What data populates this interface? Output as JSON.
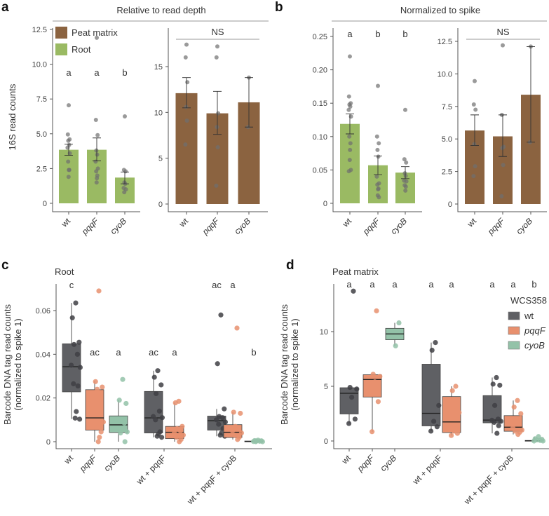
{
  "colors": {
    "root": "#9aba63",
    "peat": "#8b6340",
    "wt": "#5f6064",
    "pqqF": "#e8906e",
    "cyoB": "#93c2a8",
    "point": "#6f6f6f"
  },
  "chart_data": [
    {
      "panel": "a",
      "title": "Relative to read depth",
      "ylabel": "16S read counts",
      "legend": [
        {
          "label": "Peat matrix",
          "color": "#8b6340"
        },
        {
          "label": "Root",
          "color": "#9aba63"
        }
      ],
      "subplots": [
        {
          "type": "bar",
          "sample": "Root",
          "color": "#9aba63",
          "categories": [
            "wt",
            "pqqF",
            "cyoB"
          ],
          "ylim": [
            0,
            12.5
          ],
          "yticks": [
            "0",
            "2.5",
            "5.0",
            "7.5",
            "10.0",
            "12.5"
          ],
          "letters": [
            "a",
            "a",
            "b"
          ],
          "bars": [
            {
              "mean": 3.85,
              "err": [
                3.45,
                4.25
              ],
              "points": [
                7.05,
                4.95,
                4.6,
                4.5,
                4.2,
                4.0,
                3.6,
                3.0,
                2.4,
                2.4,
                1.9
              ]
            },
            {
              "mean": 3.85,
              "err": [
                3.05,
                4.7
              ],
              "points": [
                11.9,
                6.0,
                4.9,
                3.8,
                3.5,
                3.0,
                2.5,
                2.3,
                2.0,
                1.8,
                1.5
              ]
            },
            {
              "mean": 1.85,
              "err": [
                1.4,
                2.25
              ],
              "points": [
                6.25,
                2.4,
                2.3,
                1.5,
                1.4,
                1.1,
                1.0,
                0.8
              ]
            }
          ]
        },
        {
          "type": "bar",
          "sample": "Peat matrix",
          "color": "#8b6340",
          "categories": [
            "wt",
            "pqqF",
            "cyoB"
          ],
          "ylim": [
            0,
            18
          ],
          "yticks": [
            "0",
            "5",
            "10",
            "15"
          ],
          "significance": "NS",
          "bars": [
            {
              "mean": 12.1,
              "err": [
                10.5,
                13.8
              ],
              "points": [
                17.4,
                16.0,
                13.3,
                10.6,
                9.1,
                6.5
              ]
            },
            {
              "mean": 9.9,
              "err": [
                7.6,
                12.3
              ],
              "points": [
                17.2,
                16.0,
                9.9,
                8.4,
                6.2,
                2.0
              ]
            },
            {
              "mean": 11.1,
              "err": [
                8.4,
                13.8
              ],
              "points": [
                13.8,
                8.4
              ]
            }
          ]
        }
      ]
    },
    {
      "panel": "b",
      "title": "Normalized to spike",
      "subplots": [
        {
          "type": "bar",
          "sample": "Root",
          "color": "#9aba63",
          "categories": [
            "wt",
            "pqqF",
            "cyoB"
          ],
          "ylim": [
            0,
            0.25
          ],
          "yticks": [
            "0",
            "0.05",
            "0.10",
            "0.15",
            "0.20",
            "0.25"
          ],
          "letters": [
            "a",
            "b",
            "b"
          ],
          "bars": [
            {
              "mean": 0.119,
              "err": [
                0.104,
                0.134
              ],
              "points": [
                0.22,
                0.16,
                0.15,
                0.148,
                0.145,
                0.14,
                0.13,
                0.1,
                0.09,
                0.08,
                0.065,
                0.05,
                0.048
              ]
            },
            {
              "mean": 0.057,
              "err": [
                0.043,
                0.071
              ],
              "points": [
                0.176,
                0.1,
                0.09,
                0.08,
                0.07,
                0.04,
                0.03,
                0.028,
                0.022,
                0.021,
                0.012,
                0.009
              ]
            },
            {
              "mean": 0.046,
              "err": [
                0.037,
                0.055
              ],
              "points": [
                0.14,
                0.066,
                0.061,
                0.045,
                0.041,
                0.034,
                0.033,
                0.027,
                0.025,
                0.019
              ]
            }
          ]
        },
        {
          "type": "bar",
          "sample": "Peat matrix",
          "color": "#8b6340",
          "categories": [
            "wt",
            "pqqF",
            "cyoB"
          ],
          "ylim": [
            0,
            12.5
          ],
          "yticks": [
            "0",
            "2.5",
            "5.0",
            "7.5",
            "10.0",
            "12.5"
          ],
          "significance": "NS",
          "bars": [
            {
              "mean": 5.65,
              "err": [
                4.5,
                6.85
              ],
              "points": [
                9.45,
                7.65,
                7.25,
                4.6,
                2.9,
                2.15
              ]
            },
            {
              "mean": 5.2,
              "err": [
                3.65,
                6.85
              ],
              "points": [
                12.2,
                6.85,
                4.4,
                4.3,
                3.0,
                0.6
              ]
            },
            {
              "mean": 8.4,
              "err": [
                4.75,
                12.1
              ],
              "points": [
                12.1,
                4.75
              ]
            }
          ]
        }
      ]
    },
    {
      "panel": "c",
      "type": "box",
      "title": "Root",
      "ylabel": [
        "Barcode DNA tag read counts",
        "(normalized to spike 1)"
      ],
      "ylim": [
        0,
        0.07
      ],
      "yticks": [
        "0",
        "0.02",
        "0.04",
        "0.06"
      ],
      "xticks": [
        "wt",
        "pqqF",
        "cyoB",
        "wt + pqqF",
        "wt + pqqF + cyoB"
      ],
      "boxes": [
        {
          "group": "wt",
          "strain": "wt",
          "letter": "c",
          "q1": 0.0228,
          "median": 0.0343,
          "q3": 0.0448,
          "whisker": [
            0.0104,
            0.0635
          ],
          "points": [
            0.0635,
            0.0567,
            0.0455,
            0.0445,
            0.04,
            0.035,
            0.034,
            0.0265,
            0.0255,
            0.0138,
            0.0108,
            0.0103
          ]
        },
        {
          "group": "pqqF",
          "strain": "pqqF",
          "letter": "ac",
          "q1": 0.0053,
          "median": 0.0109,
          "q3": 0.0238,
          "whisker": [
            0,
            0.0278
          ],
          "points": [
            0.069,
            0.0275,
            0.025,
            0.024,
            0.0145,
            0.013,
            0.009,
            0.008,
            0.0045,
            0.002,
            0
          ]
        },
        {
          "group": "cyoB",
          "strain": "cyoB",
          "letter": "a",
          "q1": 0.0042,
          "median": 0.0077,
          "q3": 0.0118,
          "whisker": [
            0,
            0.019
          ],
          "points": [
            0.0285,
            0.019,
            0.0175,
            0.0095,
            0.0085,
            0.006,
            0.0045,
            0.004,
            0
          ]
        },
        {
          "group": "wt + pqqF",
          "strain": "wt",
          "letter": "ac",
          "q1": 0.004,
          "median": 0.0109,
          "q3": 0.023,
          "whisker": [
            0.002,
            0.0325
          ],
          "points": [
            0.0325,
            0.0295,
            0.026,
            0.022,
            0.014,
            0.0115,
            0.011,
            0.01,
            0.0045,
            0.0035,
            0.0025,
            0.002
          ]
        },
        {
          "group": "wt + pqqF",
          "strain": "pqqF",
          "letter": "a",
          "q1": 0.0014,
          "median": 0.0043,
          "q3": 0.007,
          "whisker": [
            0,
            0.018
          ],
          "points": [
            0.0185,
            0.0178,
            0.007,
            0.006,
            0.005,
            0.004,
            0.003,
            0.002,
            0.001,
            0
          ]
        },
        {
          "group": "wt + pqqF + cyoB",
          "strain": "wt",
          "letter": "ac",
          "q1": 0.0053,
          "median": 0.0096,
          "q3": 0.0117,
          "whisker": [
            0.0025,
            0.015
          ],
          "points": [
            0.058,
            0.0357,
            0.015,
            0.0115,
            0.011,
            0.01,
            0.009,
            0.008,
            0.006,
            0.004,
            0.003,
            0.0025
          ]
        },
        {
          "group": "wt + pqqF + cyoB",
          "strain": "pqqF",
          "letter": "a",
          "q1": 0.0019,
          "median": 0.0043,
          "q3": 0.0078,
          "whisker": [
            0.001,
            0.0135
          ],
          "points": [
            0.052,
            0.0135,
            0.013,
            0.007,
            0.006,
            0.005,
            0.004,
            0.003,
            0.002,
            0.001
          ]
        },
        {
          "group": "wt + pqqF + cyoB",
          "strain": "cyoB",
          "letter": "b",
          "q1": 0,
          "median": 0.0001,
          "q3": 0.0003,
          "whisker": [
            0,
            0.0007
          ],
          "points": [
            0.0007,
            0.0005,
            0.0004,
            0.0003,
            0.0002,
            0.0001,
            0,
            0
          ]
        }
      ]
    },
    {
      "panel": "d",
      "type": "box",
      "title": "Peat matrix",
      "ylabel": [
        "Barcode DNA tag read counts",
        "(normalized to spike 1)"
      ],
      "ylim": [
        0,
        14.5
      ],
      "yticks": [
        "0",
        "5",
        "10"
      ],
      "xticks": [
        "wt",
        "pqqF",
        "cyoB",
        "wt + pqqF",
        "wt + pqqF + cyoB"
      ],
      "legend": {
        "title": "WCS358",
        "items": [
          {
            "label": "wt",
            "strain": "wt"
          },
          {
            "label": "pqqF",
            "strain": "pqqF"
          },
          {
            "label": "cyoB",
            "strain": "cyoB"
          }
        ]
      },
      "boxes": [
        {
          "group": "wt",
          "strain": "wt",
          "letter": "a",
          "q1": 2.47,
          "median": 4.36,
          "q3": 4.87,
          "whisker": [
            1.6,
            4.9
          ],
          "points": [
            13.7,
            4.9,
            4.75,
            4.0,
            2.0,
            1.6
          ]
        },
        {
          "group": "pqqF",
          "strain": "pqqF",
          "letter": "a",
          "q1": 4.02,
          "median": 5.62,
          "q3": 6.06,
          "whisker": [
            0.85,
            6.1
          ],
          "points": [
            11.9,
            6.1,
            5.9,
            5.4,
            3.6,
            0.85
          ]
        },
        {
          "group": "cyoB",
          "strain": "cyoB",
          "letter": "a",
          "q1": 9.26,
          "median": 9.79,
          "q3": 10.3,
          "whisker": [
            8.7,
            10.8
          ],
          "points": [
            10.8,
            8.7
          ]
        },
        {
          "group": "wt + pqqF",
          "strain": "wt",
          "letter": "a",
          "q1": 1.38,
          "median": 2.53,
          "q3": 7.02,
          "whisker": [
            0.9,
            9.0
          ],
          "points": [
            9.0,
            8.3,
            3.25,
            1.8,
            1.3,
            0.9
          ]
        },
        {
          "group": "wt + pqqF",
          "strain": "pqqF",
          "letter": "a",
          "q1": 0.77,
          "median": 1.74,
          "q3": 4.06,
          "whisker": [
            0.5,
            5.0
          ],
          "points": [
            5.0,
            4.6,
            2.6,
            0.9,
            0.7,
            0.5
          ]
        },
        {
          "group": "wt + pqqF + cyoB",
          "strain": "wt",
          "letter": "a",
          "q1": 1.66,
          "median": 1.91,
          "q3": 4.15,
          "whisker": [
            0.7,
            5.8
          ],
          "points": [
            5.8,
            5.2,
            5.1,
            3.25,
            2.0,
            1.9,
            1.8,
            1.7,
            1.4,
            0.7
          ]
        },
        {
          "group": "wt + pqqF + cyoB",
          "strain": "pqqF",
          "letter": "a",
          "q1": 0.89,
          "median": 1.26,
          "q3": 2.32,
          "whisker": [
            0.6,
            3.7
          ],
          "points": [
            3.7,
            3.1,
            2.5,
            2.0,
            1.6,
            1.2,
            1.0,
            0.9,
            0.8,
            0.6
          ]
        },
        {
          "group": "wt + pqqF + cyoB",
          "strain": "cyoB",
          "letter": "b",
          "q1": 0,
          "median": 0.02,
          "q3": 0.05,
          "whisker": [
            0,
            0.4
          ],
          "points": [
            0.4,
            0.2,
            0.15,
            0.1,
            0.05,
            0,
            0
          ]
        }
      ]
    }
  ]
}
